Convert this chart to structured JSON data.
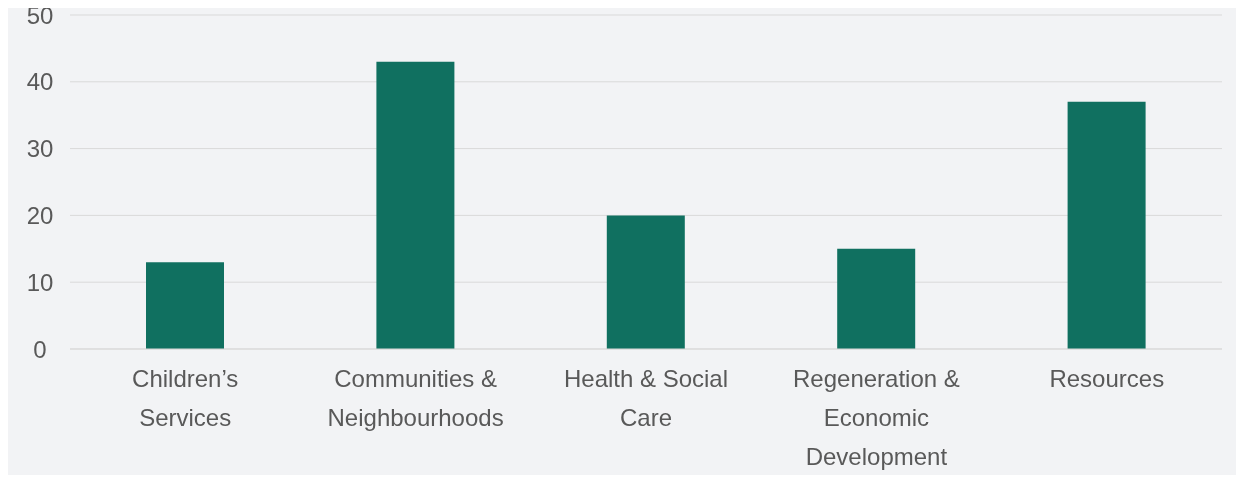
{
  "chart_data": {
    "type": "bar",
    "categories": [
      "Children’s Services",
      "Communities & Neighbourhoods",
      "Health & Social Care",
      "Regeneration & Economic Development",
      "Resources"
    ],
    "values": [
      13,
      43,
      20,
      15,
      37
    ],
    "color": "#107060",
    "ylim": [
      0,
      50
    ],
    "yticks": [
      0,
      10,
      20,
      30,
      40,
      50
    ],
    "grid": "y",
    "legend": false
  }
}
